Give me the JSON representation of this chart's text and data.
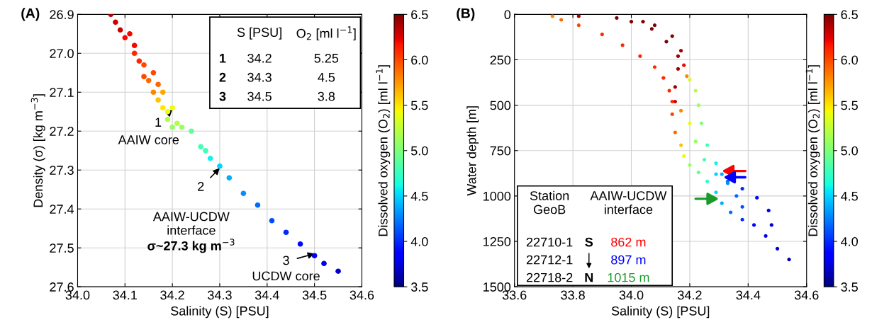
{
  "chart_data": [
    {
      "type": "scatter",
      "title": "(A)",
      "xlabel": "Salinity (S) [PSU]",
      "ylabel": "Density (σ) [kg m$^{−3}$]",
      "clabel": "Dissolved oxygen (O$_{2}$) [ml l$^{−1}$]",
      "x": [
        34.07,
        34.08,
        34.09,
        34.1,
        34.11,
        34.12,
        34.12,
        34.13,
        34.14,
        34.14,
        34.15,
        34.16,
        34.16,
        34.17,
        34.17,
        34.18,
        34.18,
        34.19,
        34.2,
        34.19,
        34.2,
        34.21,
        34.22,
        34.24,
        34.26,
        34.27,
        34.28,
        34.3,
        34.32,
        34.35,
        34.38,
        34.41,
        34.44,
        34.47,
        34.5,
        34.52,
        34.55
      ],
      "values": [
        26.9,
        26.92,
        26.94,
        26.96,
        26.95,
        26.98,
        27.0,
        27.02,
        27.03,
        27.06,
        27.07,
        27.05,
        27.1,
        27.08,
        27.12,
        27.1,
        27.14,
        27.15,
        27.14,
        27.17,
        27.19,
        27.18,
        27.19,
        27.2,
        27.24,
        27.25,
        27.27,
        27.29,
        27.32,
        27.36,
        27.39,
        27.43,
        27.46,
        27.49,
        27.52,
        27.54,
        27.56
      ],
      "cvalues": [
        6.3,
        6.3,
        6.3,
        6.2,
        6.2,
        6.2,
        6.1,
        6.1,
        6.0,
        6.0,
        5.9,
        6.0,
        5.8,
        5.9,
        5.6,
        5.7,
        5.5,
        5.4,
        5.4,
        5.2,
        5.1,
        5.2,
        5.1,
        4.9,
        4.8,
        4.8,
        4.6,
        4.5,
        4.4,
        4.3,
        4.2,
        4.1,
        4.0,
        3.9,
        3.8,
        3.8,
        3.7
      ],
      "xlim": [
        34.0,
        34.6
      ],
      "xticks": [
        {
          "value": 34.0,
          "label": "34.0"
        },
        34.1,
        34.2,
        34.3,
        34.4,
        34.5,
        34.6
      ],
      "ylim": [
        27.6,
        26.9
      ],
      "yticks": [
        26.9,
        {
          "value": 27.0,
          "label": "27.0"
        },
        27.1,
        27.2,
        27.3,
        27.4,
        27.5,
        27.6
      ],
      "clim": [
        3.5,
        6.5
      ],
      "cticks": [
        3.5,
        {
          "value": 4.0,
          "label": "4.0"
        },
        4.5,
        {
          "value": 5.0,
          "label": "5.0"
        },
        5.5,
        {
          "value": 6.0,
          "label": "6.0"
        },
        6.5
      ],
      "grid": true,
      "marker": "circle",
      "annotations": [
        {
          "text": "1",
          "x": 34.2,
          "y": 27.145
        },
        "AAIW core",
        {
          "text": "2",
          "x": 34.3,
          "y": 27.295
        },
        "AAIW-UCDW\ninterface",
        "σ~27.3 kg m$^{−3}$",
        {
          "text": "3",
          "x": 34.5,
          "y": 27.515
        },
        "UCDW core",
        "S [PSU]",
        "O$_{2}$ [ml l$^{−1}$]",
        "1",
        "34.2",
        "5.25",
        "2",
        "34.3",
        "4.5",
        "3",
        "34.5",
        "3.8"
      ]
    },
    {
      "type": "scatter",
      "title": "(B)",
      "xlabel": "Salinity (S) [PSU]",
      "ylabel": "Water depth [m]",
      "clabel": "Dissolved oxygen (O$_{2}$) [ml l$^{−1}$]",
      "x": [
        33.73,
        33.76,
        33.82,
        33.9,
        33.97,
        34.03,
        34.08,
        34.11,
        34.13,
        34.14,
        34.14,
        34.15,
        34.17,
        34.18,
        34.2,
        34.23,
        34.26,
        34.29,
        34.31,
        34.34,
        34.38,
        34.42,
        34.46,
        34.5,
        34.54,
        33.82,
        33.95,
        34.04,
        34.07,
        34.12,
        34.16,
        34.16,
        34.15,
        34.15,
        34.17,
        34.2,
        34.22,
        34.25,
        34.29,
        34.33,
        34.38,
        34.43,
        34.47,
        34.48,
        34.0,
        34.08,
        34.14,
        34.17,
        34.18,
        34.19,
        34.2,
        34.22,
        34.23,
        34.24,
        34.26,
        34.29,
        34.31,
        34.33,
        34.36,
        34.38
      ],
      "values": [
        10,
        30,
        60,
        110,
        170,
        230,
        290,
        350,
        420,
        480,
        550,
        650,
        720,
        780,
        830,
        870,
        920,
        980,
        1040,
        1090,
        1130,
        1160,
        1220,
        1290,
        1350,
        10,
        20,
        40,
        80,
        150,
        230,
        300,
        400,
        480,
        530,
        600,
        700,
        800,
        880,
        920,
        960,
        1010,
        1080,
        1160,
        40,
        60,
        120,
        200,
        280,
        340,
        360,
        420,
        500,
        600,
        720,
        820,
        880,
        930,
        1000,
        1060
      ],
      "cvalues": [
        5.8,
        5.9,
        6.0,
        6.1,
        6.1,
        6.1,
        6.1,
        6.1,
        6.1,
        6.1,
        6.0,
        5.9,
        5.6,
        5.4,
        5.1,
        4.9,
        4.7,
        4.5,
        4.4,
        4.2,
        4.0,
        3.9,
        3.8,
        3.7,
        3.6,
        6.4,
        6.5,
        6.5,
        6.5,
        6.5,
        6.4,
        6.4,
        6.4,
        6.3,
        5.8,
        5.4,
        5.1,
        4.8,
        4.5,
        4.2,
        4.0,
        3.9,
        3.8,
        3.7,
        6.5,
        6.5,
        6.5,
        6.4,
        6.2,
        5.8,
        5.3,
        5.2,
        5.1,
        5.0,
        4.8,
        4.6,
        4.4,
        4.3,
        4.2,
        4.1
      ],
      "xlim": [
        33.6,
        34.6
      ],
      "xticks": [
        33.6,
        33.8,
        {
          "value": 34.0,
          "label": "34.0"
        },
        34.2,
        34.4,
        34.6
      ],
      "ylim": [
        1500,
        0
      ],
      "yticks": [
        0,
        250,
        500,
        750,
        1000,
        1250,
        1500
      ],
      "clim": [
        3.5,
        6.5
      ],
      "cticks": [
        3.5,
        {
          "value": 4.0,
          "label": "4.0"
        },
        4.5,
        {
          "value": 5.0,
          "label": "5.0"
        },
        5.5,
        {
          "value": 6.0,
          "label": "6.0"
        },
        6.5
      ],
      "grid": true,
      "marker": "circle",
      "annotations": [
        "Station\nGeoB",
        "AAIW-UCDW\ninterface",
        "22710-1",
        "S",
        "862 m",
        "22712-1",
        "897 m",
        "22718-2",
        "N",
        "1015 m"
      ]
    }
  ]
}
